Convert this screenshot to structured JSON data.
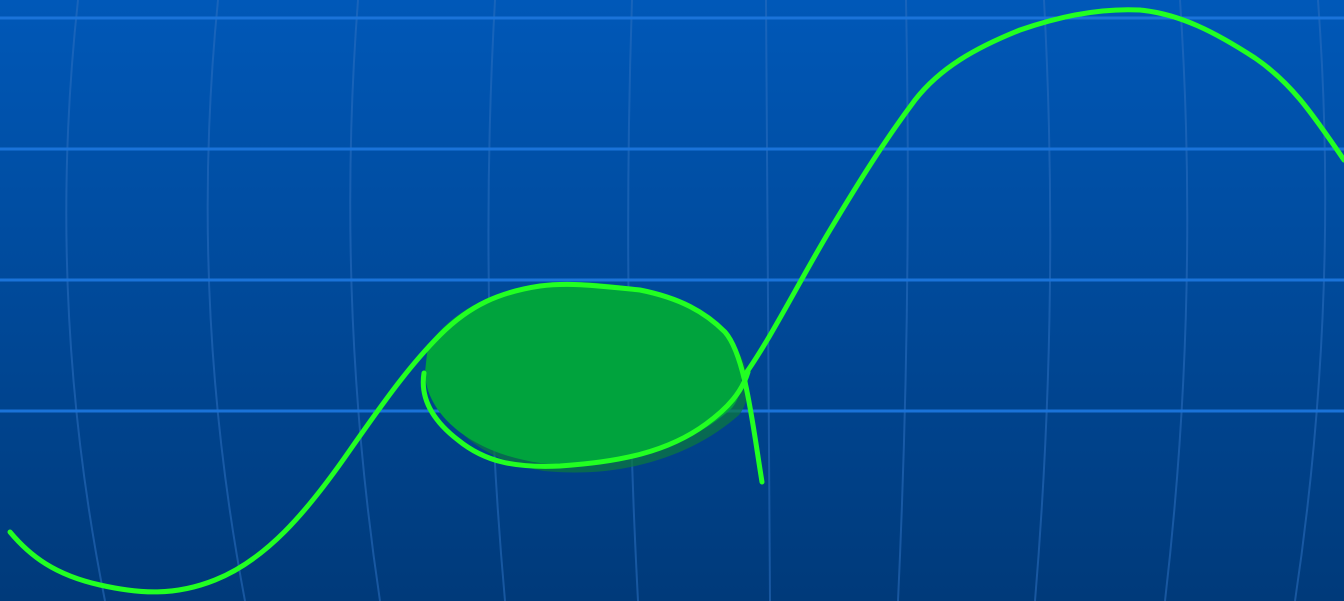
{
  "background": {
    "gradient_top": "#0058b8",
    "gradient_bottom": "#003a7a",
    "grid_line_color": "#1a73d9",
    "grid_line_faint_color": "#2b6fbf"
  },
  "drawing": {
    "curve_color": "#22ff22",
    "blob_fill_color": "#00a33d",
    "blob_shadow_color": "#0b7a3a",
    "stroke_type": "hand-drawn freehand"
  }
}
